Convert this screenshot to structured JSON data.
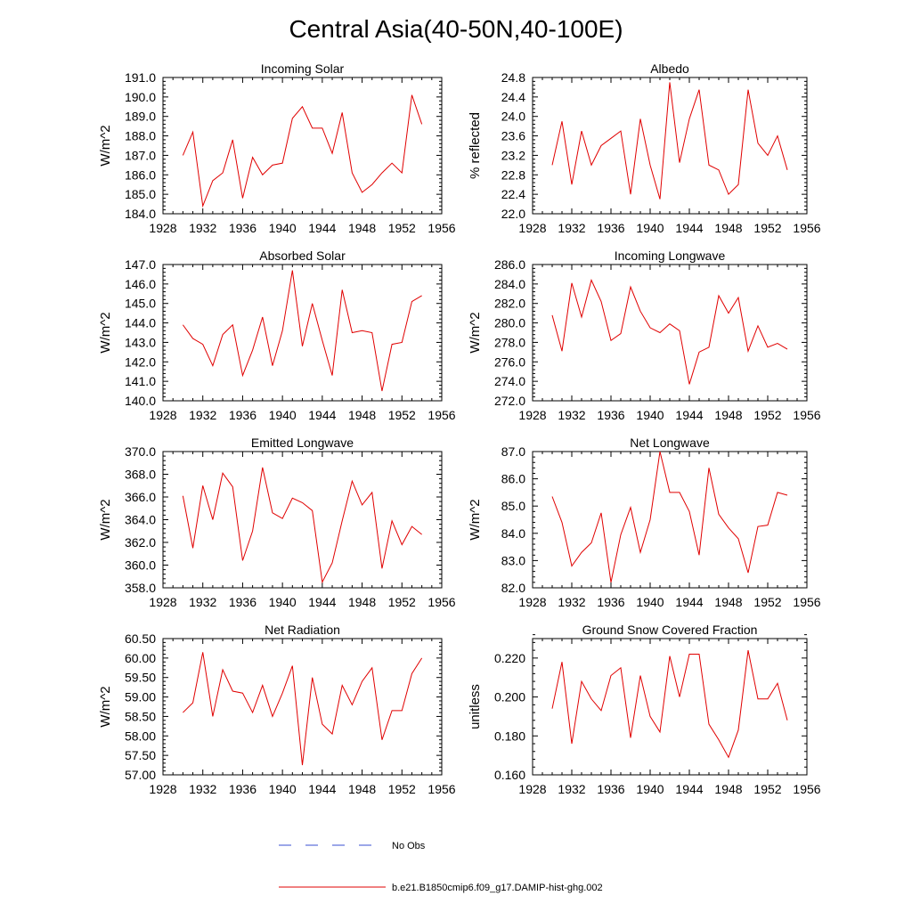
{
  "figure": {
    "title": "Central Asia(40-50N,40-100E)",
    "legend": {
      "obs_label": "No Obs",
      "obs_color": "#3a4fd0",
      "model_label": "b.e21.B1850cmip6.f09_g17.DAMIP-hist-ghg.002",
      "model_color": "#e00000"
    }
  },
  "chart_data": [
    {
      "type": "line",
      "title": "Incoming Solar",
      "ylabel": "W/m^2",
      "xlim": [
        1928,
        1956
      ],
      "xticks": [
        1928,
        1932,
        1936,
        1940,
        1944,
        1948,
        1952,
        1956
      ],
      "ylim": [
        184.0,
        191.0
      ],
      "yticks": [
        "184.0",
        "185.0",
        "186.0",
        "187.0",
        "188.0",
        "189.0",
        "190.0",
        "191.0"
      ],
      "series": [
        {
          "x": [
            1930,
            1931,
            1932,
            1933,
            1934,
            1935,
            1936,
            1937,
            1938,
            1939,
            1940,
            1941,
            1942,
            1943,
            1944,
            1945,
            1946,
            1947,
            1948,
            1949,
            1950,
            1951,
            1952,
            1953,
            1954
          ],
          "values": [
            187.0,
            188.2,
            184.4,
            185.7,
            186.1,
            187.8,
            184.8,
            186.9,
            186.0,
            186.5,
            186.6,
            188.9,
            189.5,
            188.4,
            188.4,
            187.1,
            189.2,
            186.1,
            185.1,
            185.5,
            186.1,
            186.6,
            186.1,
            190.1,
            188.6
          ]
        }
      ]
    },
    {
      "type": "line",
      "title": "Albedo",
      "ylabel": "% reflected",
      "xlim": [
        1928,
        1956
      ],
      "xticks": [
        1928,
        1932,
        1936,
        1940,
        1944,
        1948,
        1952,
        1956
      ],
      "ylim": [
        22.0,
        24.8
      ],
      "yticks": [
        "22.0",
        "22.4",
        "22.8",
        "23.2",
        "23.6",
        "24.0",
        "24.4",
        "24.8"
      ],
      "series": [
        {
          "x": [
            1930,
            1931,
            1932,
            1933,
            1934,
            1935,
            1936,
            1937,
            1938,
            1939,
            1940,
            1941,
            1942,
            1943,
            1944,
            1945,
            1946,
            1947,
            1948,
            1949,
            1950,
            1951,
            1952,
            1953,
            1954
          ],
          "values": [
            23.0,
            23.9,
            22.6,
            23.7,
            23.0,
            23.4,
            23.55,
            23.7,
            22.4,
            23.95,
            23.0,
            22.3,
            24.7,
            23.05,
            23.95,
            24.55,
            23.0,
            22.9,
            22.4,
            22.6,
            24.55,
            23.45,
            23.2,
            23.6,
            22.9
          ]
        }
      ]
    },
    {
      "type": "line",
      "title": "Absorbed Solar",
      "ylabel": "W/m^2",
      "xlim": [
        1928,
        1956
      ],
      "xticks": [
        1928,
        1932,
        1936,
        1940,
        1944,
        1948,
        1952,
        1956
      ],
      "ylim": [
        140.0,
        147.0
      ],
      "yticks": [
        "140.0",
        "141.0",
        "142.0",
        "143.0",
        "144.0",
        "145.0",
        "146.0",
        "147.0"
      ],
      "series": [
        {
          "x": [
            1930,
            1931,
            1932,
            1933,
            1934,
            1935,
            1936,
            1937,
            1938,
            1939,
            1940,
            1941,
            1942,
            1943,
            1944,
            1945,
            1946,
            1947,
            1948,
            1949,
            1950,
            1951,
            1952,
            1953,
            1954
          ],
          "values": [
            143.9,
            143.2,
            142.9,
            141.8,
            143.4,
            143.9,
            141.3,
            142.6,
            144.3,
            141.8,
            143.6,
            146.7,
            142.8,
            145.0,
            143.1,
            141.3,
            145.7,
            143.5,
            143.6,
            143.5,
            140.5,
            142.9,
            143.0,
            145.1,
            145.4
          ]
        }
      ]
    },
    {
      "type": "line",
      "title": "Incoming Longwave",
      "ylabel": "W/m^2",
      "xlim": [
        1928,
        1956
      ],
      "xticks": [
        1928,
        1932,
        1936,
        1940,
        1944,
        1948,
        1952,
        1956
      ],
      "ylim": [
        272.0,
        286.0
      ],
      "yticks": [
        "272.0",
        "274.0",
        "276.0",
        "278.0",
        "280.0",
        "282.0",
        "284.0",
        "286.0"
      ],
      "series": [
        {
          "x": [
            1930,
            1931,
            1932,
            1933,
            1934,
            1935,
            1936,
            1937,
            1938,
            1939,
            1940,
            1941,
            1942,
            1943,
            1944,
            1945,
            1946,
            1947,
            1948,
            1949,
            1950,
            1951,
            1952,
            1953,
            1954
          ],
          "values": [
            280.8,
            277.1,
            284.1,
            280.6,
            284.4,
            282.2,
            278.2,
            278.9,
            283.7,
            281.2,
            279.5,
            279.0,
            279.9,
            279.2,
            273.7,
            277.0,
            277.5,
            282.8,
            281.0,
            282.6,
            277.1,
            279.7,
            277.5,
            277.9,
            277.3
          ]
        }
      ]
    },
    {
      "type": "line",
      "title": "Emitted Longwave",
      "ylabel": "W/m^2",
      "xlim": [
        1928,
        1956
      ],
      "xticks": [
        1928,
        1932,
        1936,
        1940,
        1944,
        1948,
        1952,
        1956
      ],
      "ylim": [
        358.0,
        370.0
      ],
      "yticks": [
        "358.0",
        "360.0",
        "362.0",
        "364.0",
        "366.0",
        "368.0",
        "370.0"
      ],
      "series": [
        {
          "x": [
            1930,
            1931,
            1932,
            1933,
            1934,
            1935,
            1936,
            1937,
            1938,
            1939,
            1940,
            1941,
            1942,
            1943,
            1944,
            1945,
            1946,
            1947,
            1948,
            1949,
            1950,
            1951,
            1952,
            1953,
            1954
          ],
          "values": [
            366.1,
            361.5,
            367.0,
            364.0,
            368.1,
            366.9,
            360.4,
            363.0,
            368.6,
            364.6,
            364.1,
            365.9,
            365.5,
            364.8,
            358.5,
            360.2,
            363.9,
            367.4,
            365.3,
            366.4,
            359.7,
            363.9,
            361.8,
            363.4,
            362.7
          ]
        }
      ]
    },
    {
      "type": "line",
      "title": "Net Longwave",
      "ylabel": "W/m^2",
      "xlim": [
        1928,
        1956
      ],
      "xticks": [
        1928,
        1932,
        1936,
        1940,
        1944,
        1948,
        1952,
        1956
      ],
      "ylim": [
        82.0,
        87.0
      ],
      "yticks": [
        "82.0",
        "83.0",
        "84.0",
        "85.0",
        "86.0",
        "87.0"
      ],
      "series": [
        {
          "x": [
            1930,
            1931,
            1932,
            1933,
            1934,
            1935,
            1936,
            1937,
            1938,
            1939,
            1940,
            1941,
            1942,
            1943,
            1944,
            1945,
            1946,
            1947,
            1948,
            1949,
            1950,
            1951,
            1952,
            1953,
            1954
          ],
          "values": [
            85.35,
            84.4,
            82.8,
            83.3,
            83.65,
            84.75,
            82.2,
            83.95,
            84.95,
            83.3,
            84.5,
            87.0,
            85.5,
            85.5,
            84.8,
            83.2,
            86.4,
            84.7,
            84.2,
            83.8,
            82.55,
            84.25,
            84.3,
            85.5,
            85.4
          ]
        }
      ]
    },
    {
      "type": "line",
      "title": "Net Radiation",
      "ylabel": "W/m^2",
      "xlim": [
        1928,
        1956
      ],
      "xticks": [
        1928,
        1932,
        1936,
        1940,
        1944,
        1948,
        1952,
        1956
      ],
      "ylim": [
        57.0,
        60.5
      ],
      "yticks": [
        "57.00",
        "57.50",
        "58.00",
        "58.50",
        "59.00",
        "59.50",
        "60.00",
        "60.50"
      ],
      "series": [
        {
          "x": [
            1930,
            1931,
            1932,
            1933,
            1934,
            1935,
            1936,
            1937,
            1938,
            1939,
            1940,
            1941,
            1942,
            1943,
            1944,
            1945,
            1946,
            1947,
            1948,
            1949,
            1950,
            1951,
            1952,
            1953,
            1954
          ],
          "values": [
            58.6,
            58.85,
            60.15,
            58.5,
            59.7,
            59.15,
            59.1,
            58.6,
            59.3,
            58.5,
            59.1,
            59.8,
            57.25,
            59.5,
            58.3,
            58.05,
            59.3,
            58.8,
            59.4,
            59.75,
            57.9,
            58.65,
            58.65,
            59.6,
            60.0
          ]
        }
      ]
    },
    {
      "type": "line",
      "title": "Ground Snow Covered Fraction",
      "ylabel": "unitless",
      "xlim": [
        1928,
        1956
      ],
      "xticks": [
        1928,
        1932,
        1936,
        1940,
        1944,
        1948,
        1952,
        1956
      ],
      "ylim": [
        0.16,
        0.23
      ],
      "yticks": [
        "0.160",
        "0.180",
        "0.200",
        "0.220"
      ],
      "ytick_values": [
        0.16,
        0.18,
        0.2,
        0.22
      ],
      "series": [
        {
          "x": [
            1930,
            1931,
            1932,
            1933,
            1934,
            1935,
            1936,
            1937,
            1938,
            1939,
            1940,
            1941,
            1942,
            1943,
            1944,
            1945,
            1946,
            1947,
            1948,
            1949,
            1950,
            1951,
            1952,
            1953,
            1954
          ],
          "values": [
            0.194,
            0.218,
            0.176,
            0.208,
            0.199,
            0.193,
            0.211,
            0.215,
            0.179,
            0.211,
            0.19,
            0.182,
            0.221,
            0.2,
            0.222,
            0.222,
            0.186,
            0.178,
            0.169,
            0.183,
            0.224,
            0.199,
            0.199,
            0.207,
            0.188
          ]
        }
      ]
    }
  ]
}
